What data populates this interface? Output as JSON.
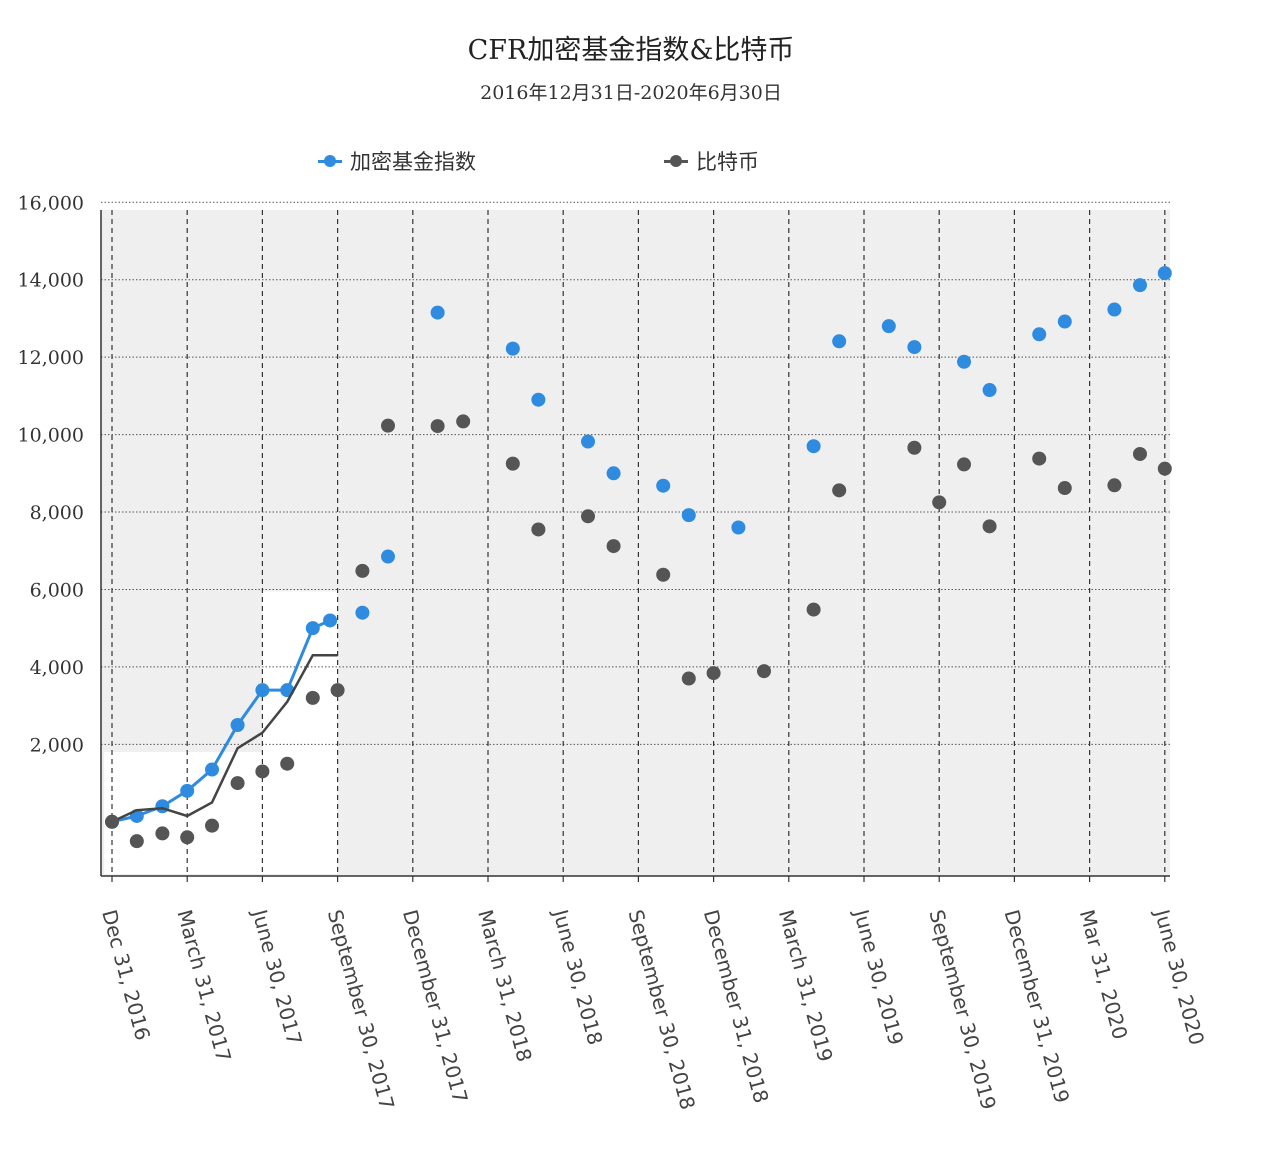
{
  "chart_data": {
    "type": "line",
    "title": "CFR加密基金指数&比特币",
    "subtitle": "2016年12月31日-2020年6月30日",
    "xlabel": "",
    "ylabel": "",
    "ylim": [
      -1400,
      15800
    ],
    "y_ticks": [
      2000,
      4000,
      6000,
      8000,
      10000,
      12000,
      14000,
      16000
    ],
    "y_tick_labels": [
      "2,000",
      "4,000",
      "6,000",
      "8,000",
      "10,000",
      "12,000",
      "14,000",
      "16,000"
    ],
    "categories": [
      "Dec 31, 2016",
      "March 31, 2017",
      "June 30, 2017",
      "September 30, 2017",
      "December 31, 2017",
      "March 31, 2018",
      "June 30, 2018",
      "September 30, 2018",
      "December 31, 2018",
      "March 31, 2019",
      "June 30, 2019",
      "September 30, 2019",
      "December 31, 2019",
      "Mar 31, 2020",
      "June 30, 2020"
    ],
    "grid": true,
    "legend_position": "top",
    "series": [
      {
        "name": "加密基金指数",
        "color": "#2f8be0",
        "x": [
          0,
          0.33,
          0.67,
          1,
          1.33,
          1.67,
          2,
          2.33,
          2.67,
          2.9,
          3.33,
          3.67,
          4.33,
          5.33,
          5.67,
          6.33,
          6.67,
          7.33,
          7.67,
          8.33,
          9.33,
          9.67,
          10.33,
          10.67,
          11.33,
          11.67,
          12.33,
          12.67,
          13.33,
          13.67,
          14
        ],
        "values": [
          0,
          150,
          400,
          800,
          1350,
          2500,
          3400,
          3400,
          5000,
          5200,
          5400,
          6850,
          13150,
          12220,
          10900,
          9820,
          9000,
          8680,
          7920,
          7600,
          9700,
          12410,
          12800,
          12260,
          11880,
          11150,
          12590,
          12920,
          13230,
          13860,
          14170
        ]
      },
      {
        "name": "比特币",
        "color": "#555555",
        "x": [
          0,
          0.33,
          0.67,
          1,
          1.33,
          1.67,
          2,
          2.33,
          2.67,
          3,
          3.33,
          3.67,
          4.33,
          4.67,
          5.33,
          5.67,
          6.33,
          6.67,
          7.33,
          7.67,
          8,
          8.67,
          9.33,
          9.67,
          10.67,
          11,
          11.33,
          11.67,
          12.33,
          12.67,
          13.33,
          13.67,
          14
        ],
        "values": [
          0,
          -500,
          -300,
          -400,
          -100,
          1000,
          1300,
          1500,
          3200,
          3400,
          6480,
          10230,
          10220,
          10340,
          9250,
          7550,
          7890,
          7120,
          6380,
          3700,
          3840,
          3890,
          5480,
          8560,
          9660,
          8250,
          9230,
          7630,
          9380,
          8620,
          8690,
          9500,
          9120
        ]
      }
    ]
  }
}
